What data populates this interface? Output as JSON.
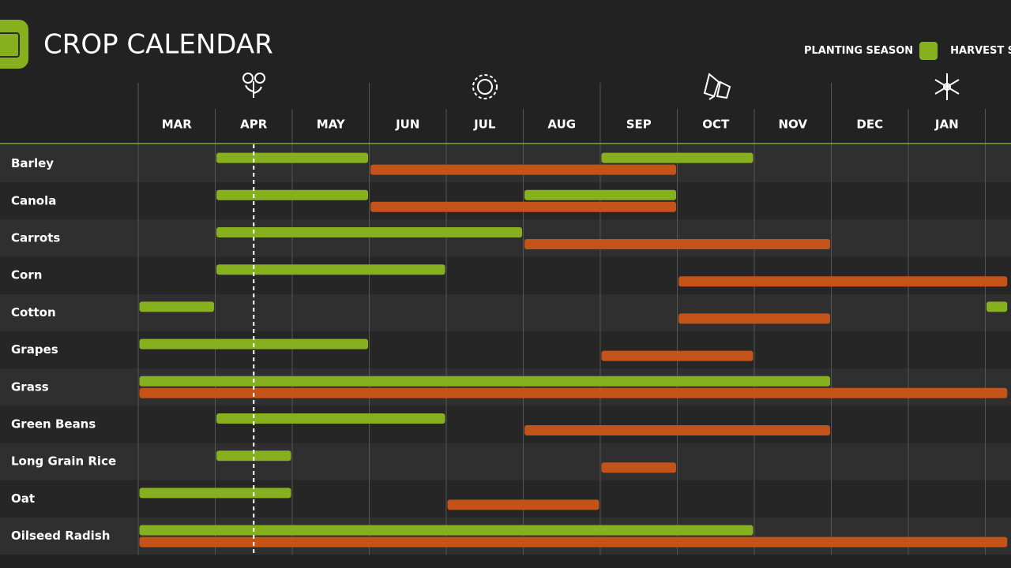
{
  "header": {
    "title": "CROP CALENDAR"
  },
  "legend": {
    "planting": "PLANTING SEASON",
    "harvest": "HARVEST SEASON"
  },
  "months": [
    "MAR",
    "APR",
    "MAY",
    "JUN",
    "JUL",
    "AUG",
    "SEP",
    "OCT",
    "NOV",
    "DEC",
    "JAN"
  ],
  "today": 1.5,
  "crops": [
    {
      "name": "Barley",
      "planting": [
        [
          1,
          3
        ],
        [
          6,
          8
        ]
      ],
      "harvest": [
        [
          3,
          7
        ]
      ]
    },
    {
      "name": "Canola",
      "planting": [
        [
          1,
          3
        ],
        [
          5,
          7
        ]
      ],
      "harvest": [
        [
          3,
          7
        ]
      ]
    },
    {
      "name": "Carrots",
      "planting": [
        [
          1,
          5
        ]
      ],
      "harvest": [
        [
          5,
          9
        ]
      ]
    },
    {
      "name": "Corn",
      "planting": [
        [
          1,
          4
        ]
      ],
      "harvest": [
        [
          7,
          11.3
        ]
      ]
    },
    {
      "name": "Cotton",
      "planting": [
        [
          0,
          1
        ],
        [
          11,
          11.3
        ]
      ],
      "harvest": [
        [
          7,
          9
        ]
      ]
    },
    {
      "name": "Grapes",
      "planting": [
        [
          0,
          3
        ]
      ],
      "harvest": [
        [
          6,
          8
        ]
      ]
    },
    {
      "name": "Grass",
      "planting": [
        [
          0,
          9
        ]
      ],
      "harvest": [
        [
          0,
          11.3
        ]
      ]
    },
    {
      "name": "Green Beans",
      "planting": [
        [
          1,
          4
        ]
      ],
      "harvest": [
        [
          5,
          9
        ]
      ]
    },
    {
      "name": "Long Grain Rice",
      "planting": [
        [
          1,
          2
        ]
      ],
      "harvest": [
        [
          6,
          7
        ]
      ]
    },
    {
      "name": "Oat",
      "planting": [
        [
          0,
          2
        ]
      ],
      "harvest": [
        [
          4,
          6
        ]
      ]
    },
    {
      "name": "Oilseed Radish",
      "planting": [
        [
          0,
          8
        ]
      ],
      "harvest": [
        [
          0,
          11.3
        ]
      ]
    }
  ]
}
